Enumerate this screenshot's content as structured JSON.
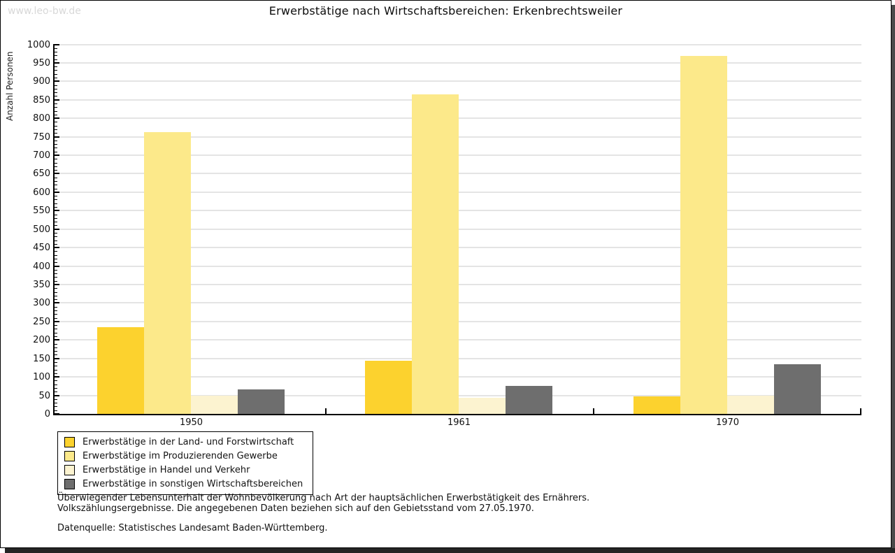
{
  "watermark": "www.leo-bw.de",
  "chart_data": {
    "type": "bar",
    "title": "Erwerbstätige nach Wirtschaftsbereichen: Erkenbrechtsweiler",
    "ylabel": "Anzahl Personen",
    "xlabel": "",
    "ylim": [
      0,
      1000
    ],
    "ytick_step": 50,
    "ytick_minor_step": 10,
    "grid": true,
    "legend_position": "bottom-left",
    "categories": [
      "1950",
      "1961",
      "1970"
    ],
    "series": [
      {
        "name": "Erwerbstätige in der Land- und Forstwirtschaft",
        "color": "#fcd22e",
        "values": [
          235,
          143,
          47
        ]
      },
      {
        "name": "Erwerbstätige im Produzierenden Gewerbe",
        "color": "#fce98a",
        "values": [
          763,
          865,
          968
        ]
      },
      {
        "name": "Erwerbstätige in Handel und Verkehr",
        "color": "#fcf3d0",
        "values": [
          50,
          43,
          50
        ]
      },
      {
        "name": "Erwerbstätige in sonstigen Wirtschaftsbereichen",
        "color": "#6e6e6e",
        "values": [
          67,
          75,
          135
        ]
      }
    ]
  },
  "footnotes": {
    "line1": "Überwiegender Lebensunterhalt der Wohnbevölkerung nach Art der hauptsächlichen Erwerbstätigkeit des Ernährers.",
    "line2": "Volkszählungsergebnisse. Die angegebenen Daten beziehen sich auf den Gebietsstand vom 27.05.1970.",
    "source": "Datenquelle: Statistisches Landesamt Baden-Württemberg."
  }
}
